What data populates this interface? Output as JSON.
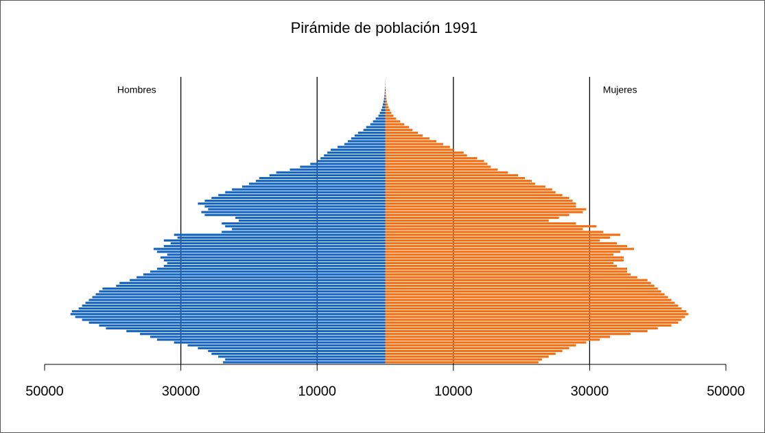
{
  "chart_data": {
    "type": "pyramid",
    "title": "Pirámide de población 1991",
    "series": [
      {
        "name": "Hombres",
        "color": "#1565c0",
        "values": [
          -23800,
          -23500,
          -24500,
          -25500,
          -26000,
          -27500,
          -29000,
          -31000,
          -33500,
          -34500,
          -36000,
          -38000,
          -41000,
          -42000,
          -43500,
          -44500,
          -45500,
          -46200,
          -46000,
          -45000,
          -44500,
          -44000,
          -43500,
          -43000,
          -42500,
          -42000,
          -41500,
          -39500,
          -39000,
          -37500,
          -36500,
          -35500,
          -34500,
          -33500,
          -32500,
          -32000,
          -32500,
          -33000,
          -32000,
          -33500,
          -34000,
          -32500,
          -31500,
          -32500,
          -30500,
          -31000,
          -24000,
          -22500,
          -23500,
          -24000,
          -21500,
          -22000,
          -26500,
          -27000,
          -26000,
          -26500,
          -27500,
          -26500,
          -25500,
          -24500,
          -23500,
          -22500,
          -21000,
          -20000,
          -19000,
          -18500,
          -17000,
          -16000,
          -14000,
          -12500,
          -11000,
          -10000,
          -9500,
          -9000,
          -8500,
          -8000,
          -7000,
          -6000,
          -5500,
          -5000,
          -4500,
          -4000,
          -3200,
          -2800,
          -2200,
          -1800,
          -1400,
          -1000,
          -800,
          -600,
          -450,
          -350,
          -250,
          -180,
          -120,
          -80,
          -50,
          -30,
          -20,
          -10,
          -5
        ]
      },
      {
        "name": "Mujeres",
        "color": "#f36f13",
        "values": [
          22500,
          23000,
          24000,
          25000,
          26000,
          27000,
          28000,
          29500,
          31500,
          33000,
          36000,
          38500,
          40000,
          42000,
          43000,
          43500,
          44000,
          44500,
          44200,
          43500,
          43000,
          42500,
          42000,
          41500,
          41000,
          40500,
          40000,
          39500,
          39000,
          38500,
          37000,
          36000,
          35500,
          35500,
          34000,
          33500,
          35000,
          35000,
          33500,
          34500,
          36500,
          35500,
          34000,
          31500,
          33000,
          34500,
          32000,
          29000,
          31000,
          28000,
          24000,
          25500,
          27000,
          29000,
          29500,
          28000,
          28000,
          27500,
          27000,
          26000,
          25000,
          24500,
          23500,
          22000,
          21500,
          20500,
          19500,
          18000,
          16500,
          15500,
          15000,
          14500,
          13500,
          12000,
          11500,
          10000,
          9500,
          8500,
          7500,
          6500,
          5500,
          4800,
          4000,
          3500,
          2800,
          2200,
          1600,
          1200,
          900,
          700,
          500,
          350,
          250,
          180,
          120,
          80,
          50,
          30,
          20,
          10,
          5
        ]
      }
    ],
    "xlim": [
      -50000,
      50000
    ],
    "xticks": [
      {
        "value": -50000,
        "label": "50000"
      },
      {
        "value": -30000,
        "label": "30000"
      },
      {
        "value": -10000,
        "label": "10000"
      },
      10000,
      30000,
      50000
    ],
    "grid": true
  }
}
